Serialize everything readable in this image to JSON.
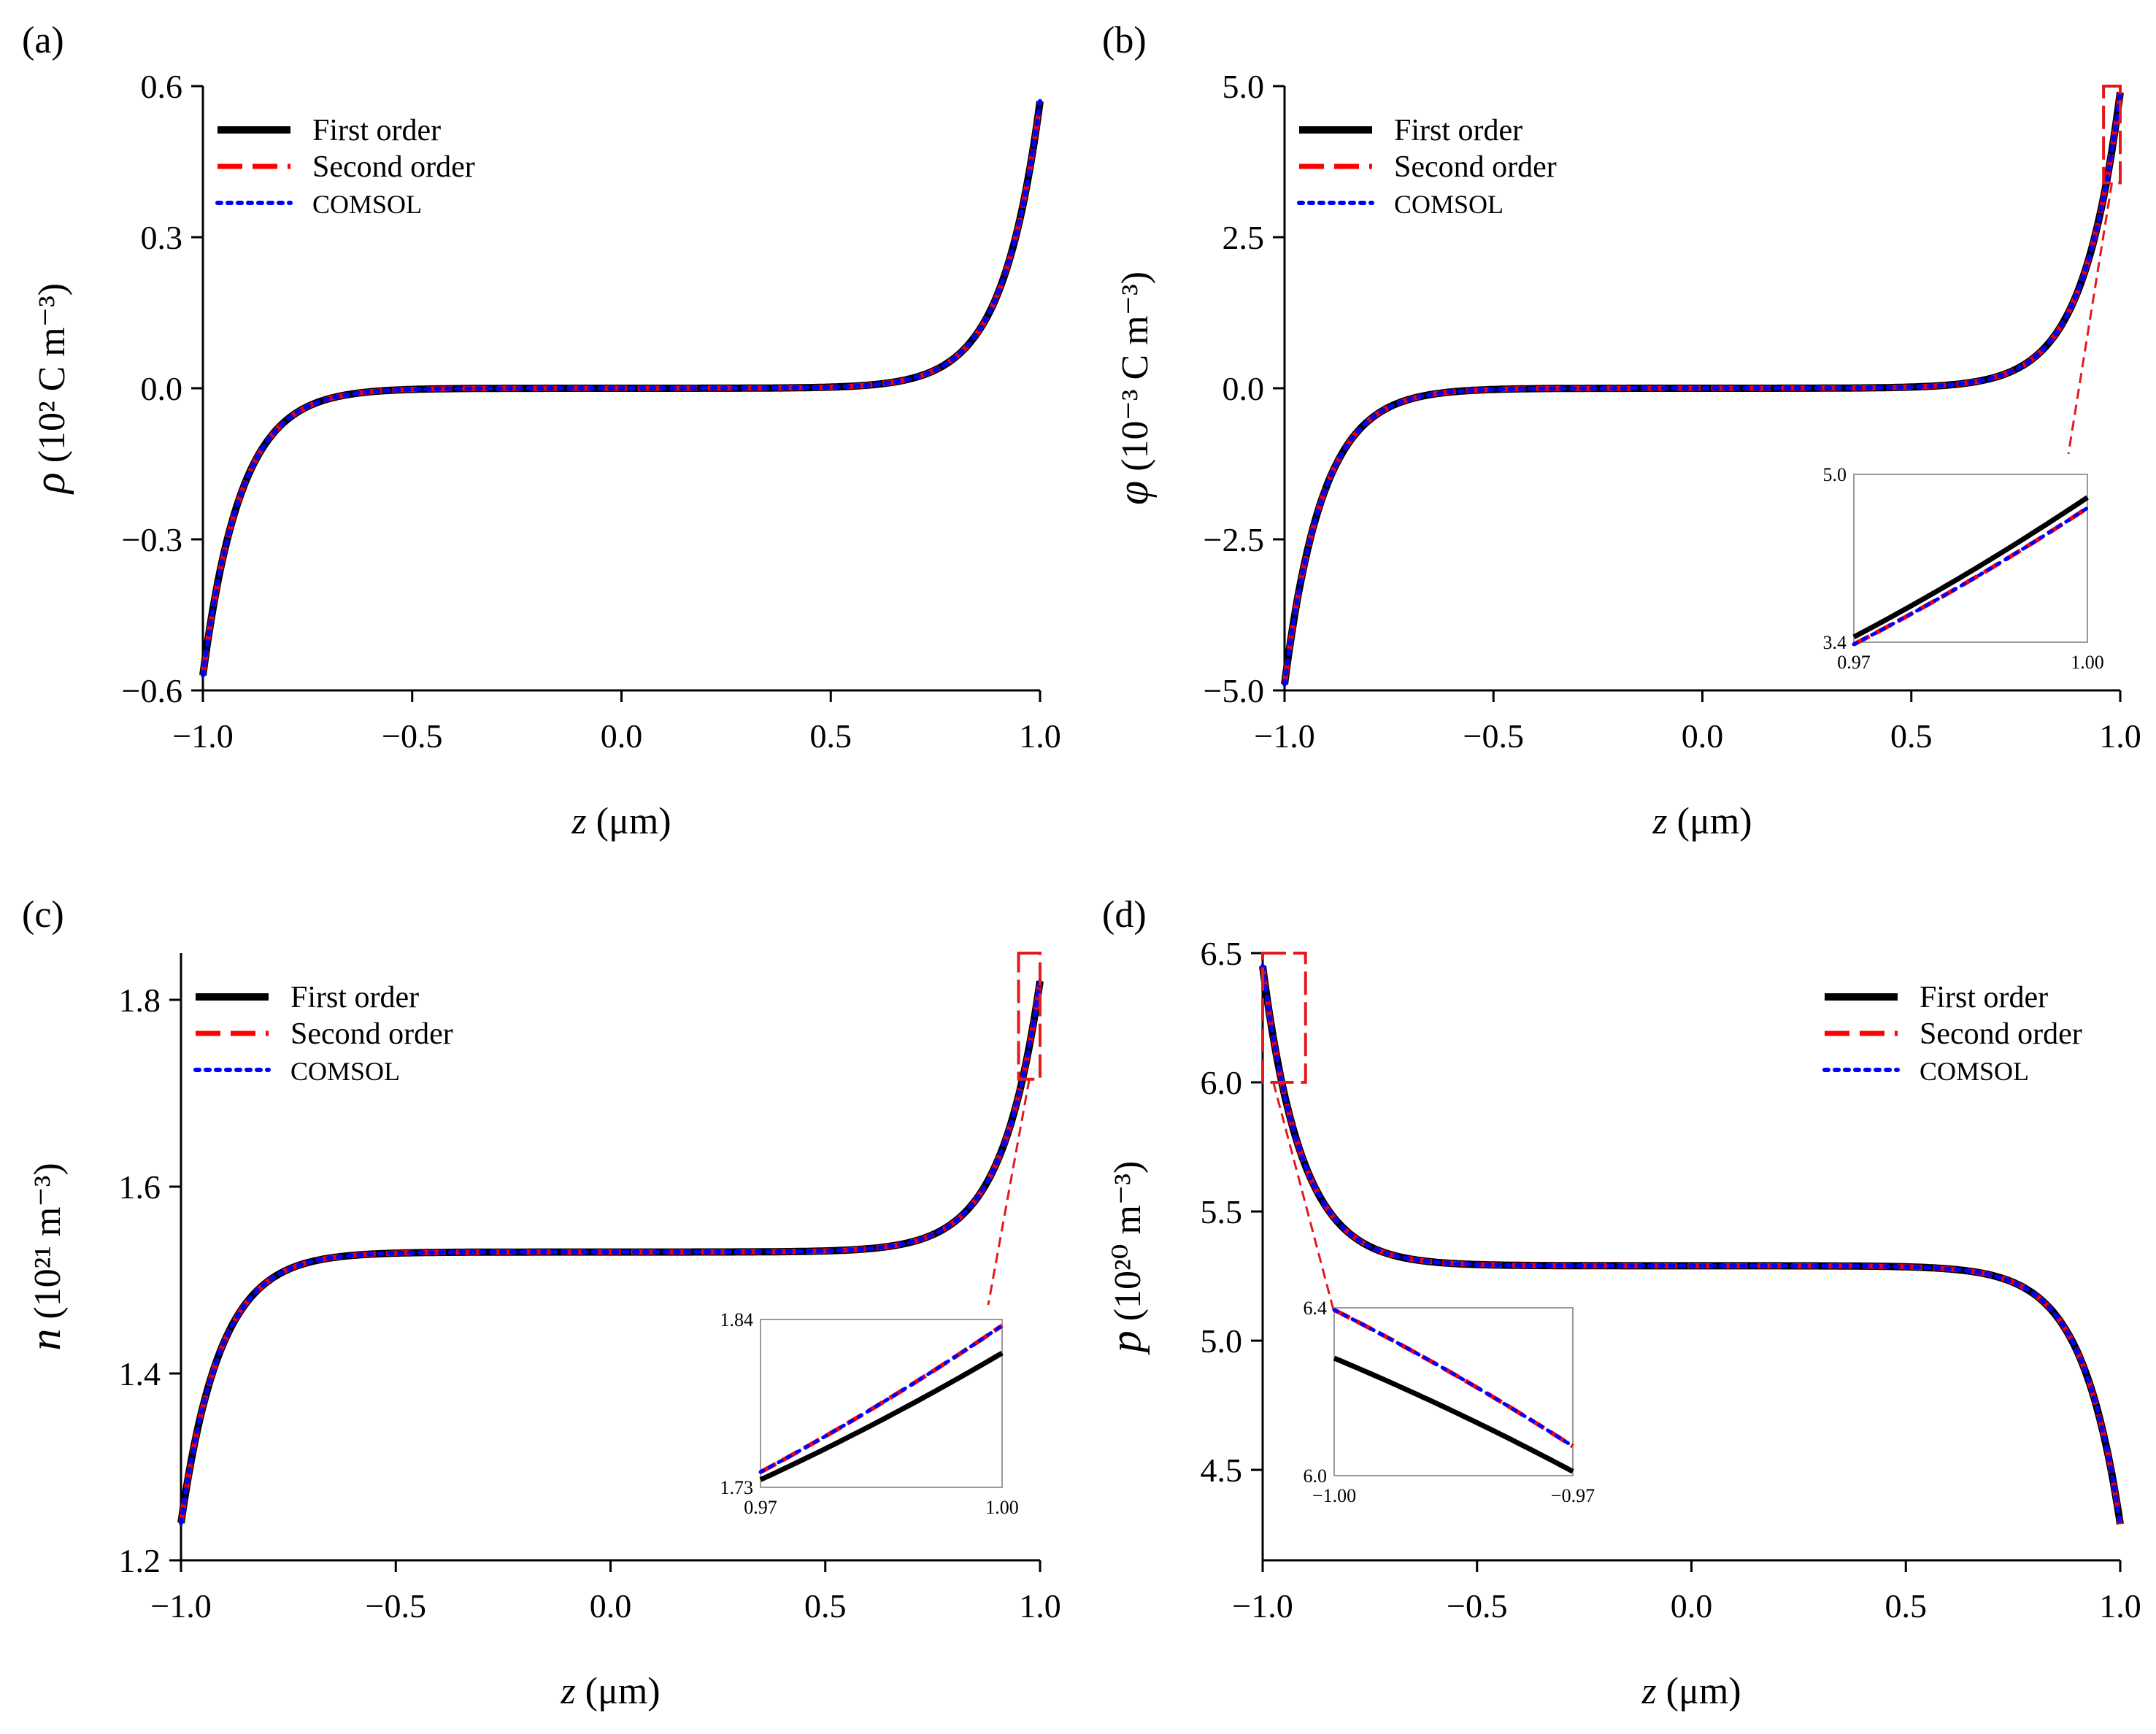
{
  "figure": {
    "colors": {
      "first": "#000000",
      "second": "#ff0000",
      "comsol": "#0000ff",
      "box": "#e31a1c",
      "inset_frame": "#9a9a9a"
    }
  },
  "chart_data": [
    {
      "id": "a",
      "type": "line",
      "panel_label": "(a)",
      "ylabel_symbol": "ρ",
      "ylabel_unit": "(10² C m⁻³)",
      "xlabel_symbol": "z",
      "xlabel_unit": "(μm)",
      "xlim": [
        -1.0,
        1.0
      ],
      "ylim": [
        -0.6,
        0.6
      ],
      "xticks": [
        "−1.0",
        "−0.5",
        "0.0",
        "0.5",
        "1.0"
      ],
      "yticks": [
        "−0.6",
        "−0.3",
        "0.0",
        "0.3",
        "0.6"
      ],
      "curve": {
        "kind": "odd",
        "base": 0.0,
        "amp": 0.57,
        "k": 11.0
      },
      "series": [
        {
          "name": "First order",
          "style": "solid"
        },
        {
          "name": "Second order",
          "style": "dashed"
        },
        {
          "name": "COMSOL",
          "style": "dotted"
        }
      ],
      "legend_position": "top-left"
    },
    {
      "id": "b",
      "type": "line",
      "panel_label": "(b)",
      "ylabel_symbol": "φ",
      "ylabel_unit": "(10⁻³ C m⁻³)",
      "xlabel_symbol": "z",
      "xlabel_unit": "(μm)",
      "xlim": [
        -1.0,
        1.0
      ],
      "ylim": [
        -5.0,
        5.0
      ],
      "xticks": [
        "−1.0",
        "−0.5",
        "0.0",
        "0.5",
        "1.0"
      ],
      "yticks": [
        "−5.0",
        "−2.5",
        "0.0",
        "2.5",
        "5.0"
      ],
      "curve": {
        "kind": "odd",
        "base": 0.0,
        "amp": 4.9,
        "k": 11.0
      },
      "series": [
        {
          "name": "First order",
          "style": "solid"
        },
        {
          "name": "Second order",
          "style": "dashed"
        },
        {
          "name": "COMSOL",
          "style": "dotted"
        }
      ],
      "legend_position": "top-left",
      "zoom_box": {
        "x": [
          0.96,
          1.0
        ],
        "y": [
          3.4,
          5.0
        ]
      },
      "inset": {
        "xlim": [
          0.97,
          1.0
        ],
        "ylim": [
          3.4,
          5.0
        ],
        "xticks": [
          "0.97",
          "1.00"
        ],
        "yticks": [
          "3.4",
          "5.0"
        ],
        "first": [
          3.45,
          4.78
        ],
        "second": [
          3.38,
          4.68
        ],
        "comsol": [
          3.38,
          4.68
        ]
      }
    },
    {
      "id": "c",
      "type": "line",
      "panel_label": "(c)",
      "ylabel_symbol": "n",
      "ylabel_unit": "(10²¹ m⁻³)",
      "xlabel_symbol": "z",
      "xlabel_unit": "(μm)",
      "xlim": [
        -1.0,
        1.0
      ],
      "ylim": [
        1.2,
        1.85
      ],
      "xticks": [
        "−1.0",
        "−0.5",
        "0.0",
        "0.5",
        "1.0"
      ],
      "yticks": [
        "1.2",
        "1.4",
        "1.6",
        "1.8"
      ],
      "ytick_values": [
        1.2,
        1.4,
        1.6,
        1.8
      ],
      "curve": {
        "kind": "asym",
        "base": 1.53,
        "left": -0.29,
        "right": 0.29,
        "k": 11.0
      },
      "series": [
        {
          "name": "First order",
          "style": "solid"
        },
        {
          "name": "Second order",
          "style": "dashed"
        },
        {
          "name": "COMSOL",
          "style": "dotted"
        }
      ],
      "legend_position": "top-left",
      "zoom_box": {
        "x": [
          0.95,
          1.0
        ],
        "y": [
          1.715,
          1.85
        ]
      },
      "inset": {
        "xlim": [
          0.97,
          1.0
        ],
        "ylim": [
          1.73,
          1.84
        ],
        "xticks": [
          "0.97",
          "1.00"
        ],
        "yticks": [
          "1.73",
          "1.84"
        ],
        "first": [
          1.735,
          1.818
        ],
        "second": [
          1.74,
          1.836
        ],
        "comsol": [
          1.74,
          1.836
        ]
      }
    },
    {
      "id": "d",
      "type": "line",
      "panel_label": "(d)",
      "ylabel_symbol": "p",
      "ylabel_unit": "(10²⁰ m⁻³)",
      "xlabel_symbol": "z",
      "xlabel_unit": "(μm)",
      "xlim": [
        -1.0,
        1.0
      ],
      "ylim": [
        4.15,
        6.5
      ],
      "xticks": [
        "−1.0",
        "−0.5",
        "0.0",
        "0.5",
        "1.0"
      ],
      "yticks": [
        "4.5",
        "5.0",
        "5.5",
        "6.0",
        "6.5"
      ],
      "ytick_values": [
        4.5,
        5.0,
        5.5,
        6.0,
        6.5
      ],
      "curve": {
        "kind": "asym",
        "base": 5.29,
        "left": 1.16,
        "right": -1.0,
        "k": 11.0
      },
      "series": [
        {
          "name": "First order",
          "style": "solid"
        },
        {
          "name": "Second order",
          "style": "dashed"
        },
        {
          "name": "COMSOL",
          "style": "dotted"
        }
      ],
      "legend_position": "top-right",
      "zoom_box": {
        "x": [
          -1.0,
          -0.9
        ],
        "y": [
          6.0,
          6.5
        ]
      },
      "inset": {
        "xlim": [
          -1.0,
          -0.97
        ],
        "ylim": [
          6.0,
          6.4
        ],
        "xticks": [
          "−1.00",
          "−0.97"
        ],
        "yticks": [
          "6.4",
          "6.0"
        ],
        "first": [
          6.28,
          6.01
        ],
        "second": [
          6.395,
          6.07
        ],
        "comsol": [
          6.395,
          6.07
        ]
      }
    }
  ]
}
